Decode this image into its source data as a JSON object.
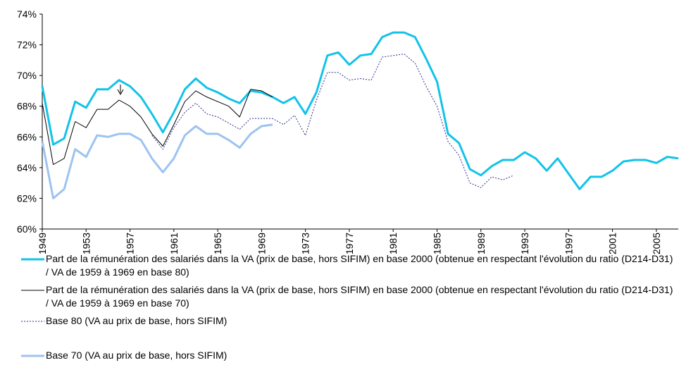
{
  "chart_data": {
    "type": "line",
    "x": [
      1949,
      1950,
      1951,
      1952,
      1953,
      1954,
      1955,
      1956,
      1957,
      1958,
      1959,
      1960,
      1961,
      1962,
      1963,
      1964,
      1965,
      1966,
      1967,
      1968,
      1969,
      1970,
      1971,
      1972,
      1973,
      1974,
      1975,
      1976,
      1977,
      1978,
      1979,
      1980,
      1981,
      1982,
      1983,
      1984,
      1985,
      1986,
      1987,
      1988,
      1989,
      1990,
      1991,
      1992,
      1993,
      1994,
      1995,
      1996,
      1997,
      1998,
      1999,
      2000,
      2001,
      2002,
      2003,
      2004,
      2005,
      2006,
      2007
    ],
    "xlim": [
      1949,
      2007
    ],
    "xticks": [
      1949,
      1953,
      1957,
      1961,
      1965,
      1969,
      1973,
      1977,
      1981,
      1985,
      1989,
      1993,
      1997,
      2001,
      2005
    ],
    "ylim": [
      60,
      74
    ],
    "yticks": [
      {
        "value": 60,
        "label": "60%"
      },
      {
        "value": 62,
        "label": "62%"
      },
      {
        "value": 64,
        "label": "64%"
      },
      {
        "value": 66,
        "label": "66%"
      },
      {
        "value": 68,
        "label": "68%"
      },
      {
        "value": 70,
        "label": "70%"
      },
      {
        "value": 72,
        "label": "72%"
      },
      {
        "value": 74,
        "label": "74%"
      }
    ],
    "series": [
      {
        "name": "Part de la rémunération des salariés dans la VA (prix de base, hors SIFIM) en base 2000 (obtenue en respectant l'évolution du ratio (D214-D31) / VA de 1959 à 1969 en base 80)",
        "color": "#12c3e8",
        "width": 3,
        "style": "solid",
        "values": [
          69.3,
          65.5,
          65.9,
          68.3,
          67.9,
          69.1,
          69.1,
          69.7,
          69.3,
          68.6,
          67.5,
          66.3,
          67.6,
          69.1,
          69.8,
          69.2,
          68.9,
          68.5,
          68.2,
          69.0,
          68.9,
          68.6,
          68.2,
          68.6,
          67.5,
          68.9,
          71.3,
          71.5,
          70.7,
          71.3,
          71.4,
          72.5,
          72.8,
          72.8,
          72.5,
          71.1,
          69.6,
          66.2,
          65.6,
          63.9,
          63.5,
          64.1,
          64.5,
          64.5,
          65.0,
          64.6,
          63.8,
          64.6,
          63.6,
          62.6,
          63.4,
          63.4,
          63.8,
          64.4,
          64.5,
          64.5,
          64.3,
          64.7,
          64.6
        ]
      },
      {
        "name": "Part de la rémunération des salariés dans la VA (prix de base, hors SIFIM) en base 2000 (obtenue en respectant l'évolution du ratio (D214-D31) / VA de 1959 à 1969 en base 70)",
        "color": "#000000",
        "width": 1,
        "style": "solid",
        "values": [
          68.2,
          64.2,
          64.6,
          67.0,
          66.6,
          67.8,
          67.8,
          68.4,
          68.0,
          67.3,
          66.2,
          65.4,
          66.8,
          68.3,
          69.0,
          68.6,
          68.3,
          68.0,
          67.3,
          69.1,
          69.0,
          68.6,
          null,
          null,
          null,
          null,
          null,
          null,
          null,
          null,
          null,
          null,
          null,
          null,
          null,
          null,
          null,
          null,
          null,
          null,
          null,
          null,
          null,
          null,
          null,
          null,
          null,
          null,
          null,
          null,
          null,
          null,
          null,
          null,
          null,
          null,
          null,
          null,
          null
        ]
      },
      {
        "name": "Base 80 (VA au prix de base, hors SIFIM)",
        "color": "#2b2b8c",
        "width": 1,
        "style": "dotted",
        "values": [
          null,
          null,
          null,
          null,
          null,
          null,
          null,
          null,
          null,
          null,
          66.1,
          65.2,
          66.6,
          67.6,
          68.2,
          67.5,
          67.3,
          66.9,
          66.5,
          67.2,
          67.2,
          67.2,
          66.8,
          67.4,
          66.1,
          68.4,
          70.2,
          70.2,
          69.7,
          69.8,
          69.7,
          71.2,
          71.3,
          71.4,
          70.8,
          69.3,
          68.0,
          65.7,
          64.8,
          63.0,
          62.7,
          63.4,
          63.2,
          63.5,
          null,
          null,
          null,
          null,
          null,
          null,
          null,
          null,
          null,
          null,
          null,
          null,
          null,
          null,
          null
        ]
      },
      {
        "name": "Base 70 (VA au prix de base, hors SIFIM)",
        "color": "#9dc3f0",
        "width": 3,
        "style": "solid",
        "values": [
          65.7,
          62.0,
          62.6,
          65.2,
          64.7,
          66.1,
          66.0,
          66.2,
          66.2,
          65.8,
          64.6,
          63.7,
          64.6,
          66.1,
          66.7,
          66.2,
          66.2,
          65.8,
          65.3,
          66.2,
          66.7,
          66.8,
          null,
          null,
          null,
          null,
          null,
          null,
          null,
          null,
          null,
          null,
          null,
          null,
          null,
          null,
          null,
          null,
          null,
          null,
          null,
          null,
          null,
          null,
          null,
          null,
          null,
          null,
          null,
          null,
          null,
          null,
          null,
          null,
          null,
          null,
          null,
          null,
          null
        ]
      }
    ]
  }
}
